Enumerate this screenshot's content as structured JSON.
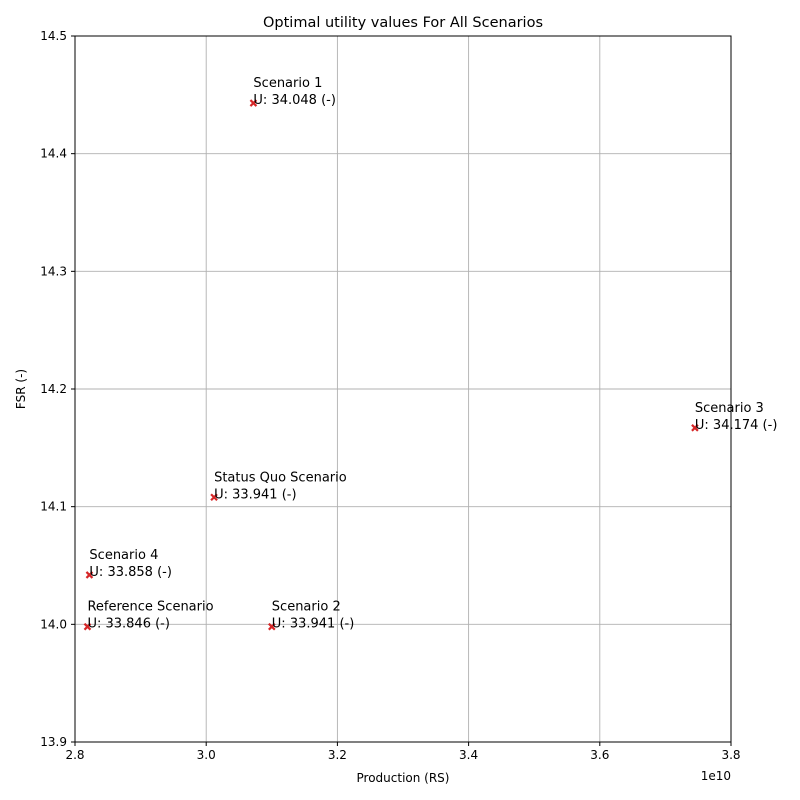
{
  "chart_data": {
    "type": "scatter",
    "title": "Optimal utility values For All Scenarios",
    "xlabel": "Production (RS)",
    "ylabel": "FSR (-)",
    "x_offset_label": "1e10",
    "xlim": [
      2.8,
      3.8
    ],
    "ylim": [
      13.9,
      14.5
    ],
    "x_ticks": [
      "2.8",
      "3.0",
      "3.2",
      "3.4",
      "3.6",
      "3.8"
    ],
    "y_ticks": [
      "13.9",
      "14.0",
      "14.1",
      "14.2",
      "14.3",
      "14.4",
      "14.5"
    ],
    "grid": true,
    "marker_color": "#d62728",
    "points": [
      {
        "name": "Scenario 1",
        "x": 3.072,
        "y": 14.443,
        "utility": "U: 34.048 (-)"
      },
      {
        "name": "Scenario 3",
        "x": 3.745,
        "y": 14.167,
        "utility": "U: 34.174 (-)"
      },
      {
        "name": "Status Quo Scenario",
        "x": 3.012,
        "y": 14.108,
        "utility": "U: 33.941 (-)"
      },
      {
        "name": "Scenario 4",
        "x": 2.822,
        "y": 14.042,
        "utility": "U: 33.858 (-)"
      },
      {
        "name": "Reference Scenario",
        "x": 2.819,
        "y": 13.998,
        "utility": "U: 33.846 (-)"
      },
      {
        "name": "Scenario 2",
        "x": 3.1,
        "y": 13.998,
        "utility": "U: 33.941 (-)"
      }
    ]
  }
}
